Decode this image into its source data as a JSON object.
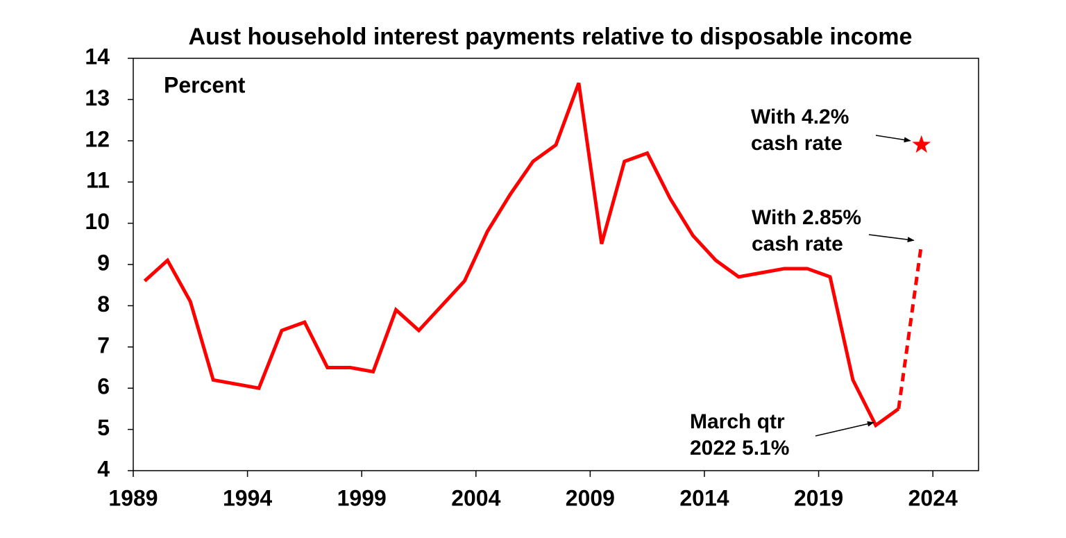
{
  "chart_data": {
    "type": "line",
    "title": "Aust household interest payments relative to disposable income",
    "ylabel": "Percent",
    "x": [
      1989.5,
      1990.5,
      1991.5,
      1992.5,
      1994.5,
      1995.5,
      1996.5,
      1997.5,
      1998.5,
      1999.5,
      2000.5,
      2001.5,
      2002.5,
      2003.5,
      2004.5,
      2005.5,
      2006.5,
      2007.5,
      2008.5,
      2009.5,
      2010.5,
      2011.5,
      2012.5,
      2013.5,
      2014.5,
      2015.5,
      2016.5,
      2017.5,
      2018.5,
      2019.5,
      2020.5,
      2021.5,
      2022.5
    ],
    "series": [
      {
        "color": "#ff0000",
        "values": [
          8.6,
          9.1,
          8.1,
          6.2,
          6.0,
          7.4,
          7.6,
          6.5,
          6.5,
          6.4,
          7.9,
          7.4,
          8.0,
          8.6,
          9.8,
          10.7,
          11.5,
          11.9,
          13.4,
          9.5,
          11.5,
          11.7,
          10.6,
          9.7,
          9.1,
          8.7,
          8.8,
          8.9,
          8.9,
          8.7,
          6.2,
          5.1,
          5.5
        ]
      }
    ],
    "projection": {
      "color": "#ff0000",
      "dashed": true,
      "x": [
        2022.5,
        2023.5
      ],
      "values": [
        5.5,
        9.5
      ]
    },
    "star": {
      "color": "#ff0000",
      "x": 2023.5,
      "value": 11.9
    },
    "annotations": [
      {
        "lines": [
          "With 4.2%",
          "cash rate"
        ]
      },
      {
        "lines": [
          "With 2.85%",
          "cash rate"
        ]
      },
      {
        "lines": [
          "March qtr",
          "2022 5.1%"
        ]
      }
    ],
    "xlim": [
      1989,
      2026
    ],
    "xticks": [
      1989,
      1994,
      1999,
      2004,
      2009,
      2014,
      2019,
      2024
    ],
    "ylim": [
      4,
      14
    ],
    "yticks": [
      4,
      5,
      6,
      7,
      8,
      9,
      10,
      11,
      12,
      13,
      14
    ]
  }
}
